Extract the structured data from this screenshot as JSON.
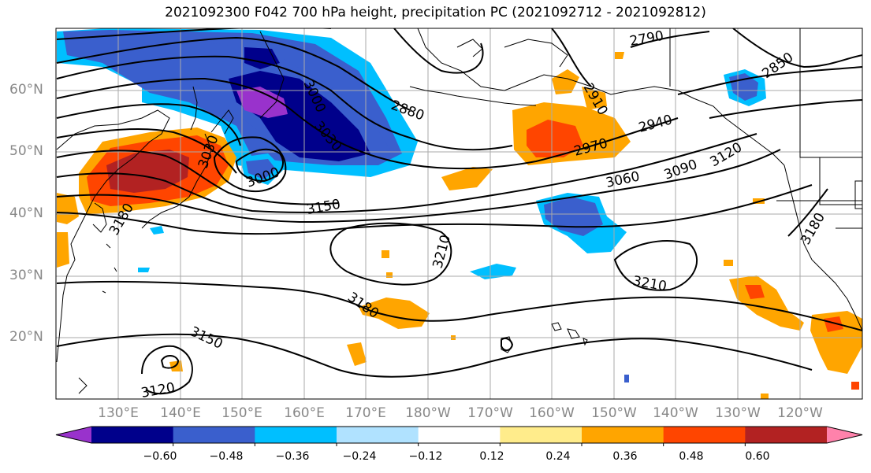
{
  "title": "2021092300 F042 700 hPa height, precipitation PC (2021092712 - 2021092812)",
  "lat_labels": [
    "60°N",
    "50°N",
    "40°N",
    "30°N",
    "20°N"
  ],
  "lon_labels": [
    "130°E",
    "140°E",
    "150°E",
    "160°E",
    "170°E",
    "180°W",
    "170°W",
    "160°W",
    "150°W",
    "140°W",
    "130°W",
    "120°W"
  ],
  "contour_labels": [
    "2790",
    "2850",
    "2880",
    "2910",
    "2940",
    "2970",
    "3000",
    "3030",
    "3060",
    "3090",
    "3120",
    "3150",
    "3180",
    "3210"
  ],
  "colorbar": {
    "tick_labels": [
      "−0.60",
      "−0.48",
      "−0.36",
      "−0.24",
      "−0.12",
      "0.12",
      "0.24",
      "0.36",
      "0.48",
      "0.60"
    ],
    "colors": [
      "#9932cc",
      "#00008b",
      "#3a5fcd",
      "#00bfff",
      "#b0e2ff",
      "#ffffff",
      "#ffec8b",
      "#ffa500",
      "#ff4500",
      "#b22222",
      "#ff82ab"
    ]
  },
  "map_colors": {
    "land_outline": "#000000",
    "gridline": "#aaaaaa",
    "contour": "#000000"
  }
}
